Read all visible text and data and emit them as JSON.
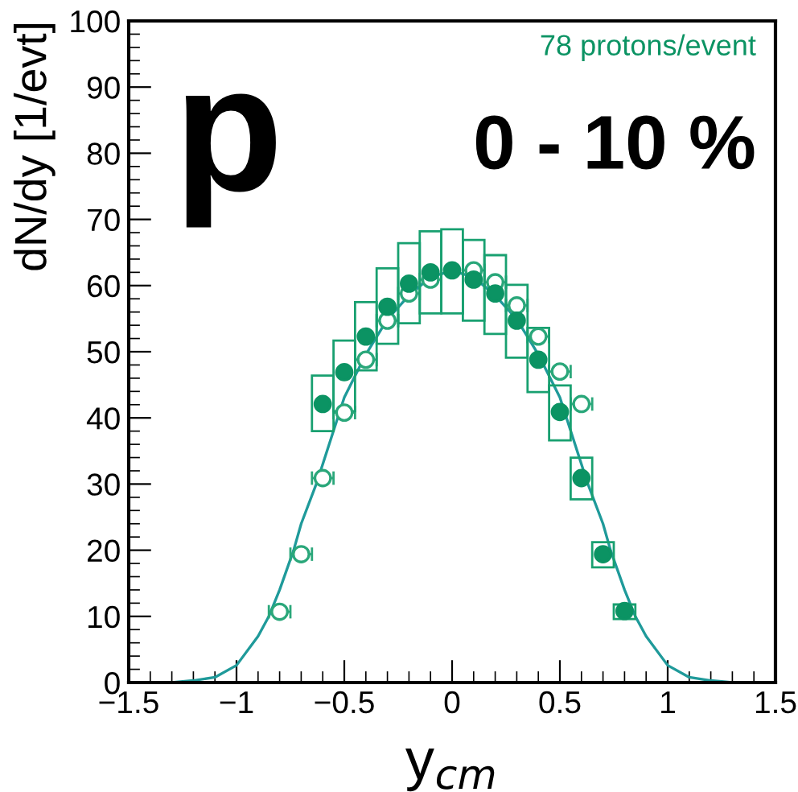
{
  "chart_data": {
    "type": "scatter",
    "xlabel": "y$_{cm}$",
    "ylabel": "dN/dy [1/evt]",
    "annotations": [
      "p",
      "0 - 10 %",
      "78 protons/event"
    ],
    "xlim": [
      -1.5,
      1.5
    ],
    "xticks": [
      {
        "value": -1.5,
        "label": "−1.5"
      },
      {
        "value": -1,
        "label": "−1"
      },
      {
        "value": -0.5,
        "label": "−0.5"
      },
      0,
      0.5,
      1,
      1.5
    ],
    "ylim": [
      0,
      100
    ],
    "yticks": [
      0,
      10,
      20,
      30,
      40,
      50,
      60,
      70,
      80,
      90,
      100
    ],
    "grid": false,
    "series": [
      {
        "type": "line",
        "color": "#1f9a9a",
        "x": [
          -1.5,
          -1.4,
          -1.3,
          -1.2,
          -1.1,
          -1.0,
          -0.9,
          -0.85,
          -0.8,
          -0.735,
          -0.7,
          -0.63,
          -0.6,
          -0.5,
          -0.4,
          -0.3,
          -0.2,
          -0.1,
          0,
          0.1,
          0.2,
          0.3,
          0.4,
          0.5,
          0.6,
          0.63,
          0.7,
          0.735,
          0.8,
          0.85,
          0.9,
          1.0,
          1.1,
          1.2,
          1.3,
          1.4,
          1.5
        ],
        "values": [
          0,
          0,
          0,
          0.3,
          0.8,
          2.6,
          7,
          10,
          14,
          20,
          24,
          30,
          33,
          43.1,
          49.6,
          54.9,
          58.5,
          61.3,
          62.2,
          61.3,
          58.5,
          54.9,
          49.6,
          43.1,
          33,
          30,
          24,
          20,
          14,
          10,
          7,
          2.6,
          0.8,
          0.3,
          0,
          0,
          0
        ]
      },
      {
        "marker": "open circle",
        "color": "#2aa77a",
        "x": [
          -0.8,
          -0.7,
          -0.6,
          -0.5,
          -0.4,
          -0.3,
          -0.2,
          -0.1,
          0.1,
          0.2,
          0.3,
          0.4,
          0.5,
          0.6
        ],
        "values": [
          10.7,
          19.4,
          30.9,
          40.8,
          48.8,
          54.7,
          58.8,
          60.9,
          62.3,
          60.5,
          57.0,
          52.3,
          47.0,
          42.1
        ],
        "xerrors": [
          0.05,
          0.05,
          0.05,
          0.05,
          0.05,
          0.05,
          0.05,
          0.05,
          0.05,
          0.05,
          0.05,
          0.05,
          0.05,
          0.05
        ]
      },
      {
        "marker": "circle",
        "color": "#0b9363",
        "x": [
          -0.6,
          -0.5,
          -0.4,
          -0.3,
          -0.2,
          -0.1,
          0,
          0.1,
          0.2,
          0.3,
          0.4,
          0.5,
          0.6,
          0.7,
          0.8
        ],
        "values": [
          42.1,
          46.9,
          52.3,
          56.8,
          60.3,
          62.0,
          62.3,
          60.9,
          58.8,
          54.7,
          48.8,
          40.9,
          30.9,
          19.4,
          10.8
        ]
      },
      {
        "type": "bar",
        "color": "#18a070",
        "x": [
          -0.6,
          -0.5,
          -0.4,
          -0.3,
          -0.2,
          -0.1,
          0,
          0.1,
          0.2,
          0.3,
          0.4,
          0.5,
          0.6,
          0.7,
          0.8
        ],
        "base": [
          38.0,
          41.0,
          47.2,
          51.2,
          54.3,
          55.8,
          55.8,
          54.7,
          52.7,
          49.1,
          43.9,
          36.6,
          27.7,
          17.4,
          9.6
        ],
        "values": [
          8.4,
          10.7,
          10.3,
          11.4,
          12.1,
          12.4,
          12.7,
          12.2,
          11.9,
          11.0,
          9.7,
          8.3,
          6.3,
          3.8,
          2.2
        ]
      }
    ]
  }
}
